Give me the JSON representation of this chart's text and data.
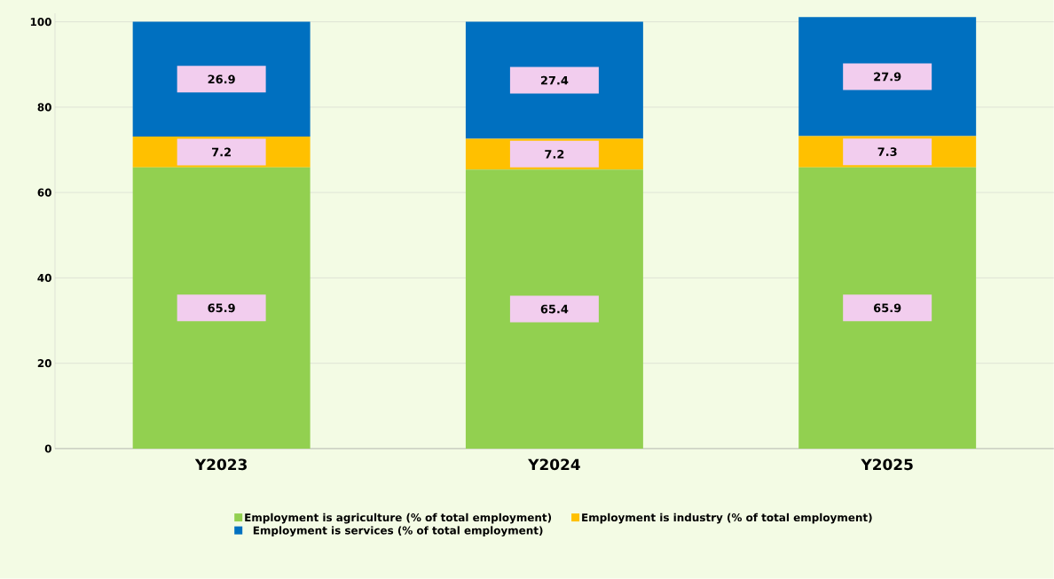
{
  "chart_data": {
    "type": "bar",
    "stacked": true,
    "categories": [
      "Y2023",
      "Y2024",
      "Y2025"
    ],
    "series": [
      {
        "name": "Employment is agriculture (% of total employment)",
        "color": "#92d050",
        "values": [
          65.9,
          65.4,
          65.9
        ],
        "value_labels": [
          "65.9",
          "65.4",
          "65.9"
        ]
      },
      {
        "name": "Employment is industry (% of total employment)",
        "color": "#ffc000",
        "values": [
          7.2,
          7.2,
          7.3
        ],
        "value_labels": [
          "7.2",
          "7.2",
          "7.3"
        ]
      },
      {
        "name": "Employment is services (% of total employment)",
        "color": "#0070c0",
        "values": [
          26.9,
          27.4,
          27.9
        ],
        "value_labels": [
          "26.9",
          "27.4",
          "27.9"
        ]
      }
    ],
    "ylim": [
      0,
      102
    ],
    "yticks": [
      0,
      20,
      40,
      60,
      80,
      100
    ],
    "grid": "y",
    "legend": "bottom"
  }
}
